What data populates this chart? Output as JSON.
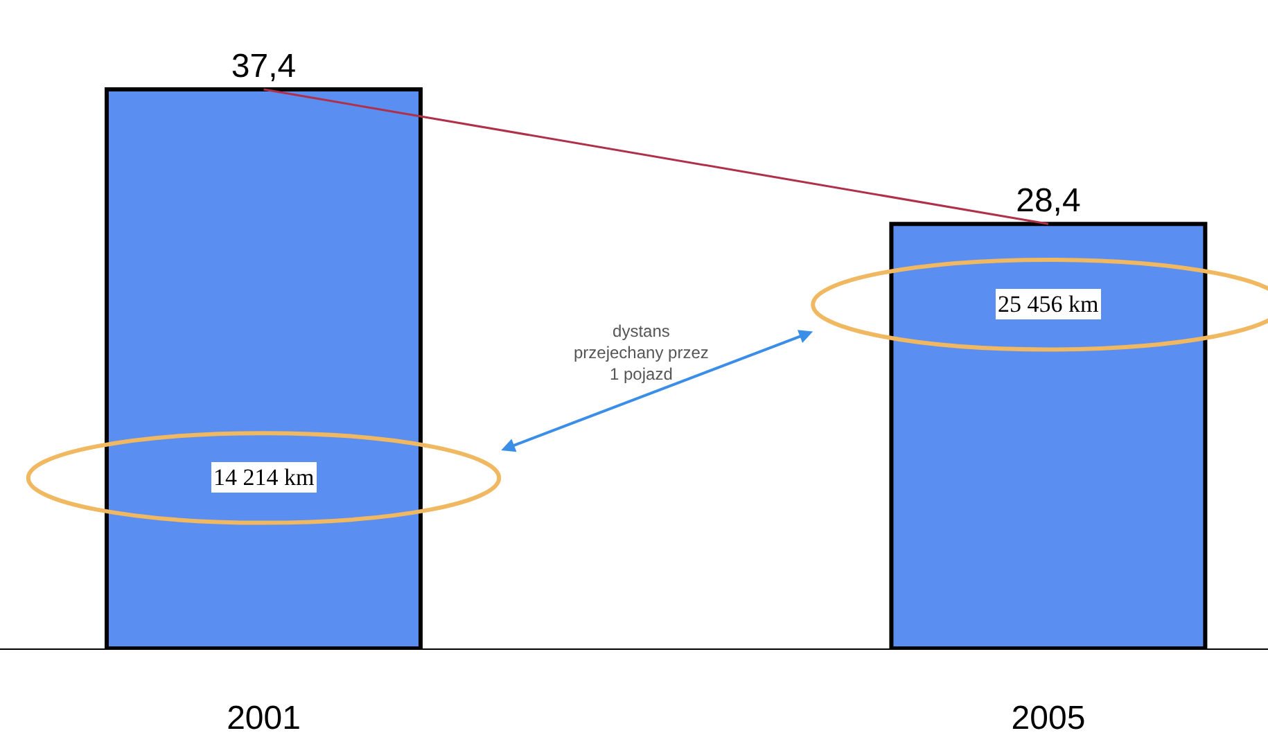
{
  "chart_data": {
    "type": "bar",
    "categories": [
      "2001",
      "2005"
    ],
    "series": [
      {
        "color": "#5a8ef0",
        "values": [
          37.4,
          28.4
        ],
        "value_labels": [
          "37,4",
          "28,4"
        ]
      },
      {
        "type": "line",
        "color": "#b0304a",
        "values": [
          37.4,
          28.4
        ]
      }
    ],
    "annotations": [
      "14 214 km",
      "25 456 km",
      "dystans\nprzejechany przez\n1 pojazd"
    ],
    "tick_labels": "x"
  }
}
